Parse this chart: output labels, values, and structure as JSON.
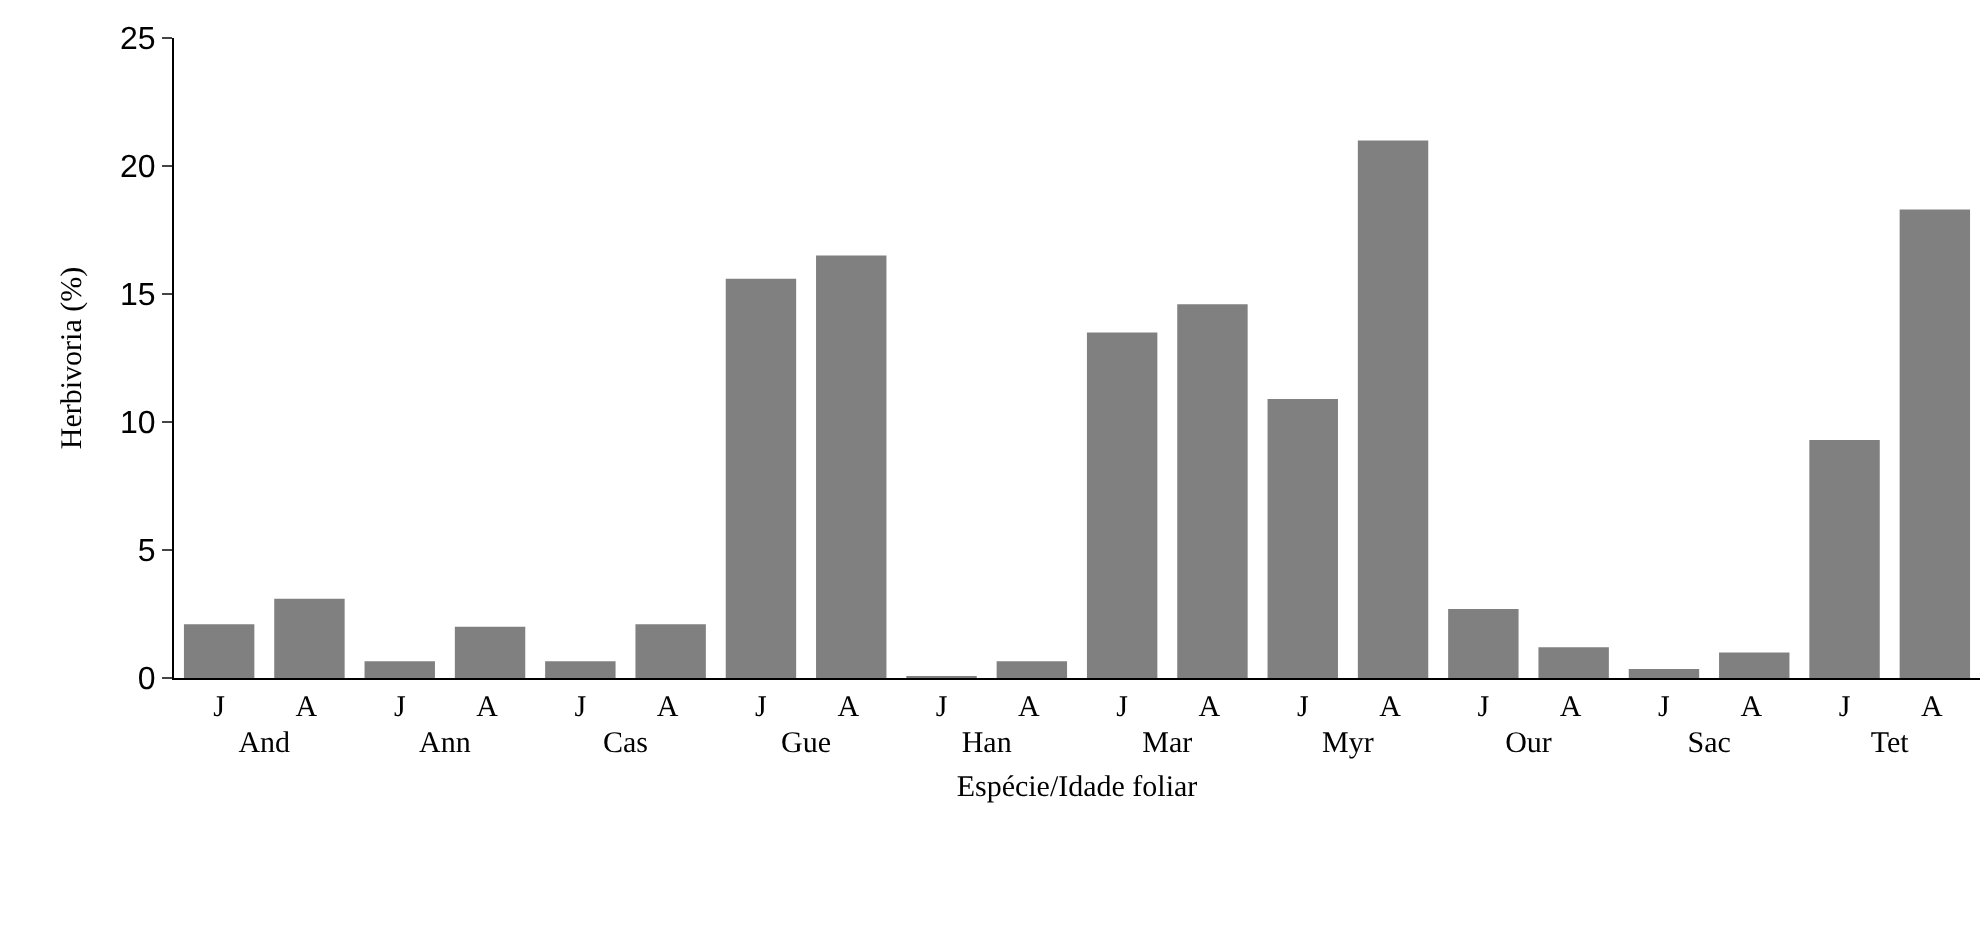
{
  "chart_data": {
    "type": "bar",
    "categories": [
      "J",
      "A",
      "J",
      "A",
      "J",
      "A",
      "J",
      "A",
      "J",
      "A",
      "J",
      "A",
      "J",
      "A",
      "J",
      "A",
      "J",
      "A",
      "J",
      "A"
    ],
    "values": [
      2.1,
      3.1,
      0.65,
      2.0,
      0.65,
      2.1,
      15.6,
      16.5,
      0.05,
      0.65,
      13.5,
      14.6,
      10.9,
      21.0,
      2.7,
      1.2,
      0.35,
      1.0,
      9.3,
      18.3
    ],
    "color": "#808080",
    "annotations": [
      "And",
      "Ann",
      "Cas",
      "Gue",
      "Han",
      "Mar",
      "Myr",
      "Our",
      "Sac",
      "Tet"
    ],
    "xlabel": "Espécie/Idade foliar",
    "ylabel": "Herbivoria (%)",
    "ylim": [
      0,
      25
    ],
    "yticks": [
      0,
      5,
      10,
      15,
      20,
      25
    ]
  }
}
